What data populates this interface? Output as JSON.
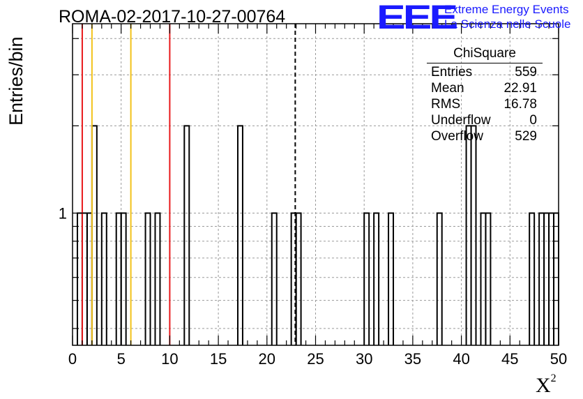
{
  "header": {
    "run_title": "ROMA-02-2017-10-27-00764",
    "logo_text": "EEE",
    "logo_line1": "Extreme Energy Events",
    "logo_line2": "La Scienza nelle Scuole"
  },
  "colors": {
    "logo": "#1a1aff",
    "red_line": "#e8191b",
    "yellow_line": "#f2c21a",
    "histogram": "#000000",
    "grid": "#9a9a9a"
  },
  "stats_box": {
    "name": "ChiSquare",
    "rows": [
      {
        "label": "Entries",
        "value": "559"
      },
      {
        "label": "Mean",
        "value": "22.91"
      },
      {
        "label": "RMS",
        "value": "16.78"
      },
      {
        "label": "Underflow",
        "value": "0"
      },
      {
        "label": "Overflow",
        "value": "529"
      }
    ]
  },
  "chart_data": {
    "type": "bar",
    "histogram_style": "step",
    "title": "ROMA-02-2017-10-27-00764",
    "xlabel": "X",
    "xlabel_superscript": "2",
    "ylabel": "Entries/bin",
    "xlim": [
      0,
      50
    ],
    "y_log_scale": true,
    "ylim": [
      0.35,
      4.5
    ],
    "grid": true,
    "x_ticks": [
      0,
      5,
      10,
      15,
      20,
      25,
      30,
      35,
      40,
      45,
      50
    ],
    "y_tick_labels": [
      {
        "value": 1,
        "label": "1"
      }
    ],
    "bin_width": 0.5,
    "bins": [
      {
        "x": 0.5,
        "y": 1
      },
      {
        "x": 1.0,
        "y": 1
      },
      {
        "x": 1.5,
        "y": 1
      },
      {
        "x": 2.0,
        "y": 2
      },
      {
        "x": 3.0,
        "y": 1
      },
      {
        "x": 4.5,
        "y": 1
      },
      {
        "x": 5.0,
        "y": 1
      },
      {
        "x": 7.5,
        "y": 1
      },
      {
        "x": 8.5,
        "y": 1
      },
      {
        "x": 11.5,
        "y": 2
      },
      {
        "x": 17.0,
        "y": 2
      },
      {
        "x": 20.5,
        "y": 1
      },
      {
        "x": 22.5,
        "y": 1
      },
      {
        "x": 23.0,
        "y": 1
      },
      {
        "x": 30.0,
        "y": 1
      },
      {
        "x": 31.0,
        "y": 1
      },
      {
        "x": 32.5,
        "y": 1
      },
      {
        "x": 37.5,
        "y": 1
      },
      {
        "x": 40.5,
        "y": 2
      },
      {
        "x": 41.0,
        "y": 2
      },
      {
        "x": 42.0,
        "y": 1
      },
      {
        "x": 42.5,
        "y": 1
      },
      {
        "x": 47.0,
        "y": 1
      },
      {
        "x": 48.0,
        "y": 1
      },
      {
        "x": 48.5,
        "y": 1
      },
      {
        "x": 49.0,
        "y": 1
      },
      {
        "x": 49.5,
        "y": 1
      }
    ],
    "vertical_lines": [
      {
        "x": 1.0,
        "color": "red"
      },
      {
        "x": 2.0,
        "color": "yellow"
      },
      {
        "x": 6.0,
        "color": "yellow"
      },
      {
        "x": 10.0,
        "color": "red"
      },
      {
        "x": 22.91,
        "color": "black",
        "style": "dashed"
      }
    ]
  }
}
